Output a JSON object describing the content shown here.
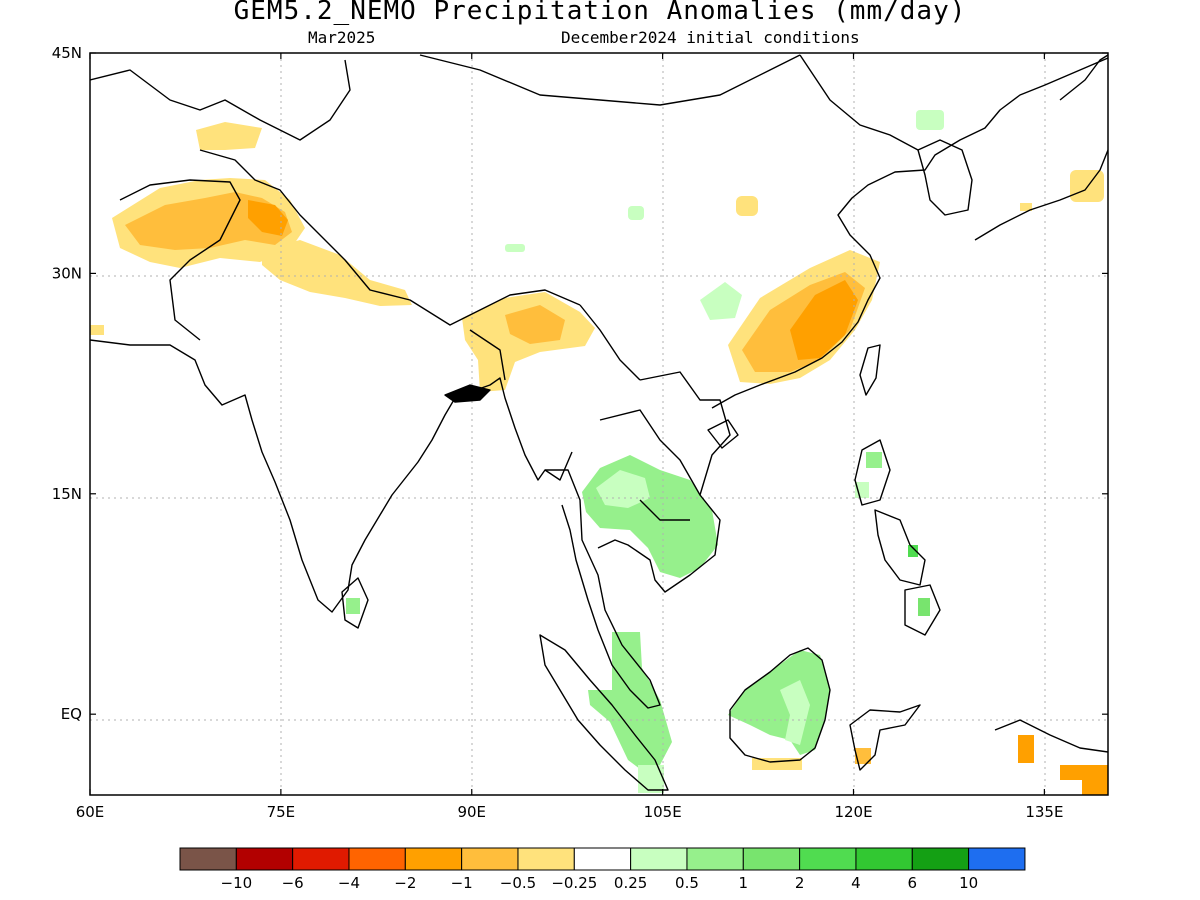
{
  "title": "GEM5.2_NEMO Precipitation Anomalies (mm/day)",
  "subtitle_left": "Mar2025",
  "subtitle_right": "December2024 initial conditions",
  "map": {
    "lon_range": [
      60,
      140
    ],
    "lat_range": [
      -5.5,
      45
    ],
    "lon_ticks": [
      {
        "value": 60,
        "label": "60E"
      },
      {
        "value": 75,
        "label": "75E"
      },
      {
        "value": 90,
        "label": "90E"
      },
      {
        "value": 105,
        "label": "105E"
      },
      {
        "value": 120,
        "label": "120E"
      },
      {
        "value": 135,
        "label": "135E"
      }
    ],
    "lat_ticks": [
      {
        "value": 45,
        "label": "45N"
      },
      {
        "value": 30,
        "label": "30N"
      },
      {
        "value": 15,
        "label": "15N"
      },
      {
        "value": 0,
        "label": "EQ"
      }
    ],
    "grid": "dotted"
  },
  "legend": {
    "colors": [
      "#7a5448",
      "#b20000",
      "#e01a00",
      "#ff6400",
      "#ffa000",
      "#ffbe3c",
      "#ffe27c",
      "#ffffff",
      "#c8ffc0",
      "#96f08c",
      "#78e46e",
      "#50dc50",
      "#32c832",
      "#14a014",
      "#1e6ef0"
    ],
    "labels": [
      "−10",
      "−6",
      "−4",
      "−2",
      "−1",
      "−0.5",
      "−0.25",
      "0.25",
      "0.5",
      "1",
      "2",
      "4",
      "6",
      "10"
    ]
  },
  "anomaly_regions": [
    {
      "name": "north-pakistan-afghanistan",
      "level": "−0.5",
      "color": "#ffbe3c"
    },
    {
      "name": "himalaya-belt",
      "level": "−0.25",
      "color": "#ffe27c"
    },
    {
      "name": "northeast-india",
      "level": "−0.25",
      "color": "#ffe27c"
    },
    {
      "name": "southeast-china",
      "level": "−1",
      "color": "#ffa000"
    },
    {
      "name": "indochina",
      "level": "0.5",
      "color": "#96f08c"
    },
    {
      "name": "sumatra",
      "level": "0.5",
      "color": "#96f08c"
    },
    {
      "name": "borneo",
      "level": "0.5",
      "color": "#96f08c"
    },
    {
      "name": "new-guinea",
      "level": "−1",
      "color": "#ffa000"
    }
  ]
}
